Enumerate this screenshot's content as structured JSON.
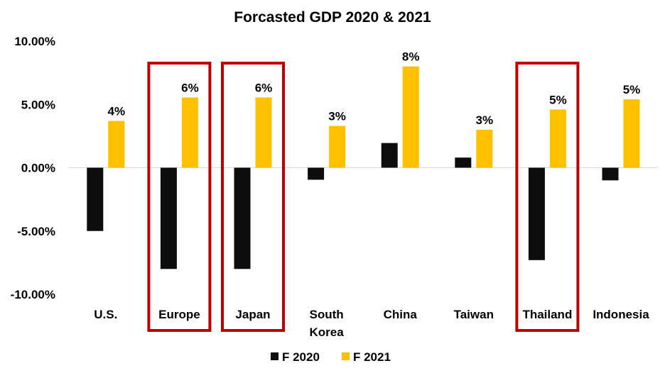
{
  "chart_data": {
    "type": "bar",
    "title": "Forcasted GDP 2020 & 2021",
    "xlabel": "",
    "ylabel": "",
    "ylim": [
      -10,
      10
    ],
    "yticks": [
      10,
      5,
      0,
      -5,
      -10
    ],
    "ytick_labels": [
      "10.00%",
      "5.00%",
      "0.00%",
      "-5.00%",
      "-10.00%"
    ],
    "grid": false,
    "categories": [
      "U.S.",
      "Europe",
      "Japan",
      "South Korea",
      "China",
      "Taiwan",
      "Thailand",
      "Indonesia"
    ],
    "category_label_lines": [
      [
        "U.S."
      ],
      [
        "Europe"
      ],
      [
        "Japan"
      ],
      [
        "South",
        "Korea"
      ],
      [
        "China"
      ],
      [
        "Taiwan"
      ],
      [
        "Thailand"
      ],
      [
        "Indonesia"
      ]
    ],
    "series": [
      {
        "name": "F 2020",
        "color": "#0D0D0D",
        "values": [
          -5.0,
          -8.0,
          -8.0,
          -0.95,
          1.95,
          0.8,
          -7.3,
          -1.0
        ],
        "data_labels": null
      },
      {
        "name": "F 2021",
        "color": "#FFC000",
        "values": [
          3.7,
          5.55,
          5.55,
          3.3,
          8.0,
          3.0,
          4.6,
          5.4
        ],
        "data_labels": [
          "4%",
          "6%",
          "6%",
          "3%",
          "8%",
          "3%",
          "5%",
          "5%"
        ]
      }
    ],
    "legend": {
      "position": "bottom",
      "entries": [
        "F 2020",
        "F 2021"
      ]
    },
    "highlighted_categories": [
      "Europe",
      "Japan",
      "Thailand"
    ],
    "highlight_color": "#C00000"
  }
}
